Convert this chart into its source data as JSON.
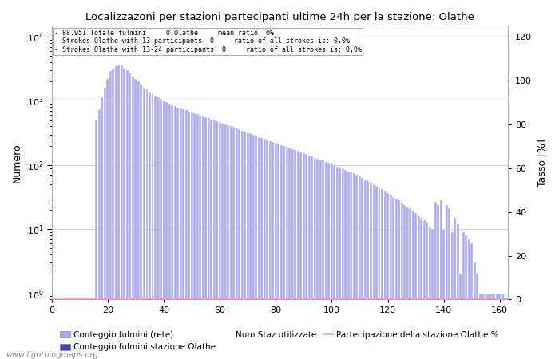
{
  "title": "Localizzazoni per stazioni partecipanti ultime 24h per la stazione: Olathe",
  "ylabel_left": "Numero",
  "ylabel_right": "Tasso [%]",
  "annotation_lines": [
    "88.951 Totale fulmini     0 Olathe     mean ratio: 0%",
    "Strokes Olathe with 13 participants: 0     ratio of all strokes is: 0,0%",
    "Strokes Olathe with 13-24 participants: 0     ratio of all strokes is: 0,0%"
  ],
  "bar_color_light": "#aaaaee",
  "bar_color_dark": "#4444aa",
  "line_color": "#ff99cc",
  "background_color": "#ffffff",
  "grid_color": "#cccccc",
  "watermark": "www.lightningmaps.org",
  "legend_items": [
    {
      "label": "Conteggio fulmini (rete)",
      "color": "#aaaaee"
    },
    {
      "label": "Conteggio fulmini stazione Olathe",
      "color": "#4444aa"
    },
    {
      "label": "Num Staz utilizzate",
      "color": "#000000"
    },
    {
      "label": "Partecipazione della stazione Olathe %",
      "color": "#ff99cc"
    }
  ],
  "xlim": [
    0,
    163
  ],
  "ylim_right": [
    0,
    125
  ],
  "xticks": [
    0,
    20,
    40,
    60,
    80,
    100,
    120,
    140,
    160
  ],
  "yticks_right": [
    0,
    20,
    40,
    60,
    80,
    100,
    120
  ],
  "bar_x": [
    16,
    17,
    18,
    19,
    20,
    21,
    22,
    23,
    24,
    25,
    26,
    27,
    28,
    29,
    30,
    31,
    32,
    33,
    34,
    35,
    36,
    37,
    38,
    39,
    40,
    41,
    42,
    43,
    44,
    45,
    46,
    47,
    48,
    49,
    50,
    51,
    52,
    53,
    54,
    55,
    56,
    57,
    58,
    59,
    60,
    61,
    62,
    63,
    64,
    65,
    66,
    67,
    68,
    69,
    70,
    71,
    72,
    73,
    74,
    75,
    76,
    77,
    78,
    79,
    80,
    81,
    82,
    83,
    84,
    85,
    86,
    87,
    88,
    89,
    90,
    91,
    92,
    93,
    94,
    95,
    96,
    97,
    98,
    99,
    100,
    101,
    102,
    103,
    104,
    105,
    106,
    107,
    108,
    109,
    110,
    111,
    112,
    113,
    114,
    115,
    116,
    117,
    118,
    119,
    120,
    121,
    122,
    123,
    124,
    125,
    126,
    127,
    128,
    129,
    130,
    131,
    132,
    133,
    134,
    135,
    136,
    137,
    138,
    139,
    140,
    141,
    142,
    143,
    144,
    145,
    146,
    147,
    148,
    149,
    150,
    151,
    152,
    153,
    154,
    155,
    156,
    157,
    158,
    159,
    160,
    161
  ],
  "bar_values": [
    500,
    750,
    1150,
    1600,
    2200,
    2900,
    3200,
    3500,
    3600,
    3550,
    3300,
    3000,
    2700,
    2400,
    2200,
    2000,
    1800,
    1600,
    1500,
    1380,
    1280,
    1200,
    1130,
    1070,
    1010,
    960,
    910,
    860,
    820,
    790,
    760,
    735,
    710,
    685,
    660,
    640,
    615,
    595,
    575,
    555,
    535,
    515,
    495,
    480,
    460,
    445,
    430,
    415,
    400,
    390,
    375,
    360,
    345,
    335,
    320,
    310,
    298,
    285,
    275,
    265,
    255,
    245,
    238,
    230,
    222,
    214,
    206,
    200,
    193,
    185,
    178,
    172,
    165,
    158,
    152,
    147,
    142,
    136,
    130,
    126,
    122,
    117,
    112,
    108,
    105,
    100,
    95,
    91,
    88,
    84,
    80,
    77,
    74,
    70,
    66,
    63,
    60,
    56,
    53,
    50,
    47,
    44,
    42,
    39,
    37,
    35,
    32,
    30,
    28,
    26,
    24,
    22,
    21,
    19,
    18,
    16,
    15,
    14,
    13,
    11,
    10,
    27,
    24,
    28,
    10,
    24,
    21,
    9,
    15,
    12,
    2,
    9,
    8,
    7,
    6,
    3,
    2,
    1,
    1,
    1,
    1,
    1,
    1,
    1,
    1,
    1
  ]
}
